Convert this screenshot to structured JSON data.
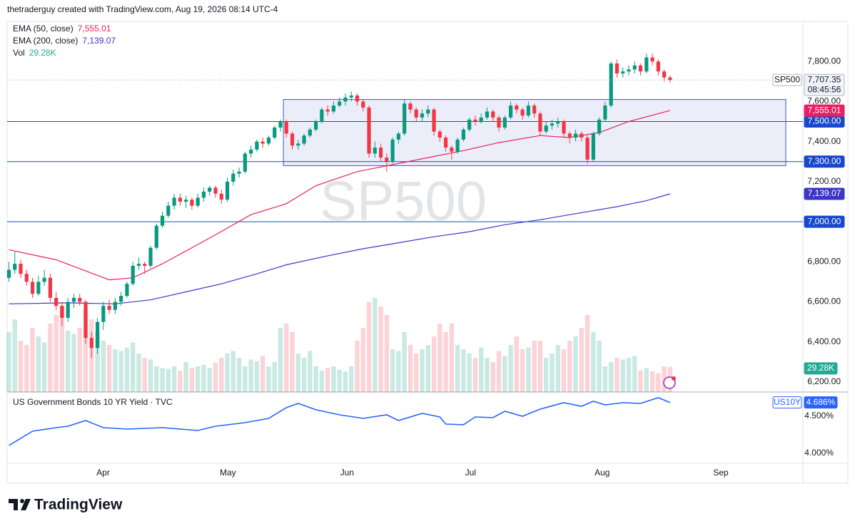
{
  "header": "thetraderguy created with TradingView.com, Aug 19, 2026 08:14 UTC-4",
  "footer_logo": "TradingView",
  "chart_data": [
    {
      "type": "candlestick",
      "symbol": "SP500",
      "watermark": "SP500",
      "last_label": "7,707.35",
      "countdown": "08:45:56",
      "up_color": "#089981",
      "down_color": "#f23645",
      "grid": false,
      "open": [
        6720,
        6760,
        6790,
        6740,
        6700,
        6640,
        6700,
        6720,
        6620,
        6580,
        6520,
        6600,
        6620,
        6600,
        6420,
        6370,
        6500,
        6580,
        6560,
        6600,
        6630,
        6690,
        6780,
        6790,
        6780,
        6870,
        6980,
        7030,
        7080,
        7120,
        7100,
        7110,
        7080,
        7120,
        7150,
        7170,
        7140,
        7110,
        7200,
        7240,
        7250,
        7340,
        7360,
        7400,
        7390,
        7420,
        7470,
        7500,
        7440,
        7380,
        7390,
        7430,
        7460,
        7500,
        7560,
        7550,
        7580,
        7600,
        7620,
        7630,
        7600,
        7570,
        7340,
        7370,
        7320,
        7300,
        7410,
        7440,
        7590,
        7560,
        7520,
        7540,
        7560,
        7450,
        7420,
        7370,
        7350,
        7410,
        7460,
        7510,
        7500,
        7520,
        7550,
        7520,
        7470,
        7520,
        7580,
        7560,
        7530,
        7580,
        7540,
        7450,
        7480,
        7490,
        7500,
        7440,
        7420,
        7440,
        7420,
        7310,
        7440,
        7510,
        7580,
        7790,
        7740,
        7750,
        7760,
        7780,
        7750,
        7820,
        7800,
        7750,
        7720
      ],
      "high": [
        6800,
        6850,
        6810,
        6760,
        6720,
        6730,
        6760,
        6740,
        6650,
        6600,
        6620,
        6640,
        6640,
        6610,
        6450,
        6520,
        6600,
        6610,
        6620,
        6650,
        6700,
        6800,
        6820,
        6800,
        6880,
        6990,
        7050,
        7100,
        7140,
        7140,
        7130,
        7120,
        7140,
        7170,
        7180,
        7180,
        7160,
        7220,
        7260,
        7270,
        7350,
        7380,
        7410,
        7420,
        7430,
        7480,
        7510,
        7510,
        7450,
        7410,
        7440,
        7470,
        7510,
        7570,
        7580,
        7600,
        7620,
        7640,
        7650,
        7640,
        7610,
        7580,
        7400,
        7390,
        7340,
        7420,
        7450,
        7610,
        7600,
        7570,
        7560,
        7580,
        7570,
        7460,
        7430,
        7380,
        7420,
        7470,
        7520,
        7530,
        7540,
        7570,
        7560,
        7530,
        7530,
        7600,
        7590,
        7570,
        7600,
        7590,
        7550,
        7500,
        7510,
        7520,
        7510,
        7450,
        7460,
        7450,
        7430,
        7450,
        7520,
        7600,
        7800,
        7810,
        7770,
        7780,
        7800,
        7790,
        7840,
        7840,
        7810,
        7760,
        7730
      ],
      "low": [
        6700,
        6740,
        6720,
        6680,
        6620,
        6630,
        6680,
        6600,
        6560,
        6480,
        6500,
        6570,
        6580,
        6390,
        6320,
        6340,
        6460,
        6540,
        6540,
        6580,
        6620,
        6680,
        6760,
        6740,
        6770,
        6860,
        6970,
        7020,
        7060,
        7080,
        7070,
        7060,
        7070,
        7100,
        7130,
        7120,
        7090,
        7100,
        7180,
        7220,
        7240,
        7320,
        7350,
        7370,
        7380,
        7410,
        7450,
        7420,
        7360,
        7360,
        7380,
        7420,
        7450,
        7490,
        7530,
        7540,
        7570,
        7580,
        7600,
        7580,
        7550,
        7320,
        7320,
        7300,
        7250,
        7290,
        7390,
        7430,
        7540,
        7500,
        7500,
        7520,
        7430,
        7400,
        7350,
        7310,
        7340,
        7400,
        7450,
        7480,
        7490,
        7510,
        7500,
        7450,
        7460,
        7510,
        7540,
        7510,
        7520,
        7520,
        7430,
        7440,
        7460,
        7470,
        7420,
        7390,
        7400,
        7400,
        7290,
        7300,
        7430,
        7500,
        7570,
        7720,
        7720,
        7730,
        7740,
        7730,
        7740,
        7780,
        7730,
        7700,
        7695
      ],
      "close": [
        6760,
        6790,
        6740,
        6700,
        6640,
        6700,
        6720,
        6620,
        6580,
        6520,
        6600,
        6620,
        6600,
        6420,
        6370,
        6500,
        6580,
        6560,
        6600,
        6630,
        6690,
        6780,
        6790,
        6780,
        6870,
        6980,
        7030,
        7080,
        7120,
        7100,
        7110,
        7080,
        7120,
        7150,
        7170,
        7140,
        7110,
        7200,
        7240,
        7250,
        7340,
        7360,
        7400,
        7390,
        7420,
        7470,
        7500,
        7440,
        7380,
        7390,
        7430,
        7460,
        7500,
        7560,
        7550,
        7580,
        7600,
        7620,
        7630,
        7600,
        7570,
        7340,
        7370,
        7320,
        7300,
        7410,
        7440,
        7590,
        7560,
        7520,
        7540,
        7560,
        7450,
        7420,
        7370,
        7350,
        7410,
        7460,
        7510,
        7500,
        7520,
        7550,
        7520,
        7470,
        7520,
        7580,
        7560,
        7530,
        7580,
        7540,
        7450,
        7480,
        7490,
        7500,
        7440,
        7420,
        7440,
        7420,
        7310,
        7440,
        7510,
        7580,
        7790,
        7740,
        7750,
        7760,
        7780,
        7750,
        7820,
        7800,
        7750,
        7720,
        7707.35
      ],
      "volume": {
        "name": "Vol",
        "color": "#22ab94",
        "last_label": "29.28K",
        "values": [
          70,
          85,
          60,
          55,
          75,
          65,
          58,
          80,
          90,
          100,
          72,
          68,
          75,
          95,
          85,
          70,
          60,
          55,
          50,
          48,
          52,
          58,
          45,
          40,
          38,
          30,
          28,
          27,
          30,
          25,
          35,
          28,
          30,
          32,
          28,
          34,
          40,
          45,
          48,
          40,
          30,
          38,
          36,
          42,
          30,
          35,
          75,
          80,
          70,
          45,
          40,
          48,
          30,
          25,
          28,
          30,
          26,
          24,
          30,
          60,
          75,
          105,
          110,
          100,
          90,
          50,
          48,
          70,
          55,
          45,
          50,
          55,
          65,
          80,
          70,
          80,
          55,
          50,
          45,
          40,
          52,
          40,
          35,
          48,
          42,
          55,
          65,
          50,
          52,
          60,
          60,
          40,
          45,
          55,
          50,
          60,
          65,
          75,
          90,
          70,
          60,
          30,
          35,
          40,
          38,
          40,
          42,
          25,
          28,
          24,
          22,
          30,
          29.28
        ]
      },
      "series": [
        {
          "name": "EMA (50, close)",
          "color": "#e91e63",
          "last_label": "7,555.01",
          "x": [
            0,
            8,
            17,
            21,
            26,
            31,
            35,
            41,
            47,
            52,
            59,
            65,
            71,
            77,
            83,
            90,
            95,
            100,
            105,
            112
          ],
          "values": [
            6860,
            6810,
            6710,
            6720,
            6790,
            6870,
            6935,
            7035,
            7090,
            7180,
            7250,
            7285,
            7320,
            7355,
            7395,
            7430,
            7420,
            7445,
            7500,
            7555.01
          ]
        },
        {
          "name": "EMA (200, close)",
          "color": "#3d35c8",
          "last_label": "7,139.07",
          "x": [
            0,
            10,
            18,
            24,
            30,
            36,
            42,
            47,
            54,
            60,
            66,
            72,
            78,
            84,
            90,
            96,
            103,
            108,
            112
          ],
          "values": [
            6590,
            6595,
            6590,
            6610,
            6650,
            6690,
            6740,
            6785,
            6830,
            6865,
            6895,
            6925,
            6950,
            6985,
            7010,
            7040,
            7075,
            7105,
            7139.07
          ]
        }
      ],
      "hlines": [
        {
          "value": 7500,
          "label": "7,500.00"
        },
        {
          "value": 7300,
          "label": "7,300.00"
        },
        {
          "value": 7000,
          "label": "7,000.00"
        }
      ],
      "hline_color": "#1848cc",
      "box": {
        "x": [
          46.5,
          131.6
        ],
        "y": [
          7280,
          7610
        ],
        "color": "#3a55c8"
      },
      "xlim": [
        -0.3,
        134.5
      ],
      "ylim": [
        6150,
        8000
      ],
      "yticks": [
        {
          "value": 7800,
          "label": "7,800.00"
        },
        {
          "value": 7600,
          "label": "7,600.00"
        },
        {
          "value": 7400,
          "label": "7,400.00"
        },
        {
          "value": 7200,
          "label": "7,200.00"
        },
        {
          "value": 7000,
          "label": "7,000.00"
        },
        {
          "value": 6800,
          "label": "6,800.00"
        },
        {
          "value": 6600,
          "label": "6,600.00"
        },
        {
          "value": 6400,
          "label": "6,400.00"
        },
        {
          "value": 6200,
          "label": "6,200.00"
        }
      ],
      "xticks": [
        {
          "value": 15.96,
          "label": "Apr"
        },
        {
          "value": 37.1,
          "label": "May"
        },
        {
          "value": 57.3,
          "label": "Jun"
        },
        {
          "value": 78.2,
          "label": "Jul"
        },
        {
          "value": 100.5,
          "label": "Aug"
        },
        {
          "value": 120.6,
          "label": "Sep"
        }
      ]
    },
    {
      "type": "line",
      "title": "US Government Bonds 10 YR Yield · TVC",
      "symbol": "US10Y",
      "series": [
        {
          "color": "#2962ff",
          "last_label": "4.686%",
          "x": [
            0,
            4,
            8,
            10,
            13,
            16,
            20,
            26,
            32,
            35,
            40,
            44,
            47,
            49,
            52,
            56,
            60,
            64,
            66,
            70,
            73,
            74,
            77,
            79,
            82,
            84,
            87,
            90,
            94,
            97,
            99,
            101,
            104,
            107,
            110,
            112
          ],
          "values": [
            4.106,
            4.298,
            4.346,
            4.365,
            4.442,
            4.346,
            4.327,
            4.346,
            4.308,
            4.365,
            4.413,
            4.471,
            4.615,
            4.673,
            4.587,
            4.519,
            4.471,
            4.519,
            4.442,
            4.538,
            4.49,
            4.394,
            4.385,
            4.49,
            4.481,
            4.567,
            4.5,
            4.596,
            4.683,
            4.635,
            4.702,
            4.654,
            4.683,
            4.673,
            4.75,
            4.686
          ]
        }
      ],
      "ylim": [
        3.865,
        4.827
      ],
      "yticks": [
        {
          "value": 4.5,
          "label": "4.500%"
        },
        {
          "value": 4.0,
          "label": "4.000%"
        }
      ]
    }
  ]
}
